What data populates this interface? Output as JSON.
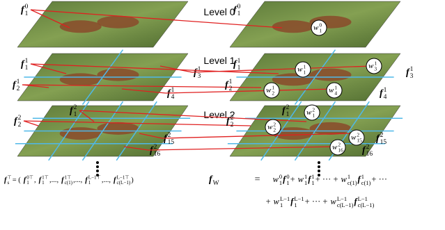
{
  "levels": [
    {
      "label": "Level 0"
    },
    {
      "label": "Level 1"
    },
    {
      "label": "Level 2"
    }
  ],
  "left_stack": {
    "labels": [
      {
        "b": "f",
        "sup": "0",
        "sub": "1"
      },
      {
        "b": "f",
        "sup": "1",
        "sub": "1"
      },
      {
        "b": "f",
        "sup": "1",
        "sub": "2"
      },
      {
        "b": "f",
        "sup": "1",
        "sub": "3"
      },
      {
        "b": "f",
        "sup": "1",
        "sub": "4"
      },
      {
        "b": "f",
        "sup": "2",
        "sub": "1"
      },
      {
        "b": "f",
        "sup": "2",
        "sub": "2"
      },
      {
        "b": "f",
        "sup": "2",
        "sub": "15"
      },
      {
        "b": "f",
        "sup": "2",
        "sub": "16"
      }
    ]
  },
  "right_stack": {
    "labels": [
      {
        "b": "f",
        "sup": "0",
        "sub": "1"
      },
      {
        "b": "f",
        "sup": "1",
        "sub": "1"
      },
      {
        "b": "f",
        "sup": "1",
        "sub": "2"
      },
      {
        "b": "f",
        "sup": "1",
        "sub": "3"
      },
      {
        "b": "f",
        "sup": "1",
        "sub": "4"
      },
      {
        "b": "f",
        "sup": "2",
        "sub": "1"
      },
      {
        "b": "f",
        "sup": "2",
        "sub": "2"
      },
      {
        "b": "f",
        "sup": "2",
        "sub": "15"
      },
      {
        "b": "f",
        "sup": "2",
        "sub": "16"
      }
    ],
    "weights": [
      {
        "b": "w",
        "sup": "0",
        "sub": "1"
      },
      {
        "b": "w",
        "sup": "1",
        "sub": "1"
      },
      {
        "b": "w",
        "sup": "1",
        "sub": "2"
      },
      {
        "b": "w",
        "sup": "1",
        "sub": "3"
      },
      {
        "b": "w",
        "sup": "1",
        "sub": "4"
      },
      {
        "b": "w",
        "sup": "2",
        "sub": "1"
      },
      {
        "b": "w",
        "sup": "2",
        "sub": "2"
      },
      {
        "b": "w",
        "sup": "2",
        "sub": "15"
      },
      {
        "b": "w",
        "sup": "2",
        "sub": "16"
      }
    ]
  },
  "formula_left": [
    {
      "b": "f",
      "sub": "s",
      "sup": "⊤"
    },
    {
      "b": " = ("
    },
    {
      "b": "f",
      "sub": "1",
      "sup": "0⊤"
    },
    {
      "b": ","
    },
    {
      "b": "f",
      "sub": "1",
      "sup": "1⊤"
    },
    {
      "b": ",...,"
    },
    {
      "b": "f",
      "sub": "c(1)",
      "sup": "1⊤"
    },
    {
      "b": ",...,"
    },
    {
      "b": "f",
      "sub": "1",
      "sup": "L−1⊤"
    },
    {
      "b": ",...,"
    },
    {
      "b": "f",
      "sub": "c(L−1)",
      "sup": "L−1⊤"
    },
    {
      "b": ")"
    }
  ],
  "formula_right": {
    "lhs": [
      {
        "b": "f",
        "sub": "W"
      },
      {
        "b": "="
      }
    ],
    "line1": [
      {
        "b": "w",
        "sub": "1",
        "sup": "0"
      },
      {
        "b": "f",
        "sub": "1",
        "sup": "0"
      },
      {
        "b": "+"
      },
      {
        "b": "w",
        "sub": "1",
        "sup": "1"
      },
      {
        "b": "f",
        "sub": "1",
        "sup": "1"
      },
      {
        "b": "+ ··· +"
      },
      {
        "b": "w",
        "sub": "c(1)",
        "sup": "1"
      },
      {
        "b": "f",
        "sub": "c(1)",
        "sup": "1"
      },
      {
        "b": "+ ···"
      }
    ],
    "line2": [
      {
        "b": "+"
      },
      {
        "b": "w",
        "sub": "1",
        "sup": "L−1"
      },
      {
        "b": "f",
        "sub": "1",
        "sup": "L−1"
      },
      {
        "b": "+ ··· +"
      },
      {
        "b": "w",
        "sub": "c(L−1)",
        "sup": "L−1"
      },
      {
        "b": "f",
        "sub": "c(L−1)",
        "sup": "L−1"
      }
    ]
  }
}
